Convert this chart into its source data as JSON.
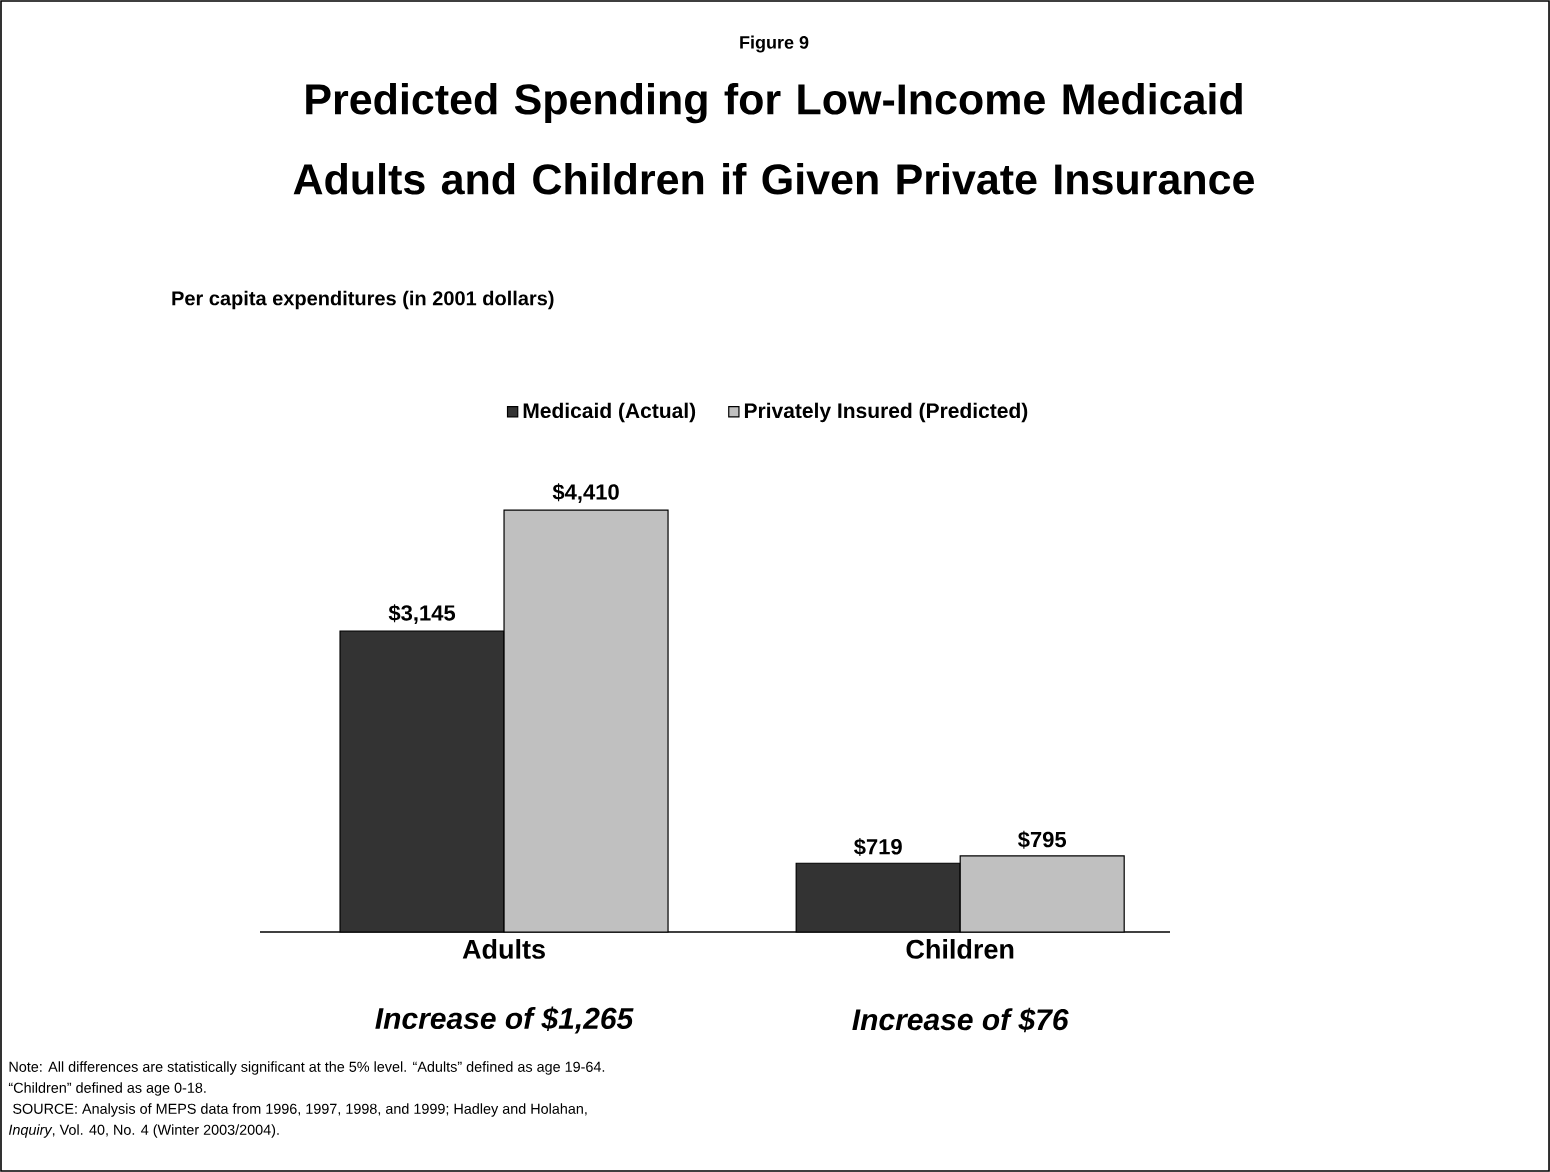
{
  "chart_data": {
    "type": "bar",
    "subtitle": "Figure 9",
    "title": "Predicted Spending for Low-Income Medicaid Adults and Children if Given Private Insurance",
    "categories": [
      "Adults",
      "Children"
    ],
    "series": [
      {
        "name": "Medicaid (Actual)",
        "color": "#333333",
        "values": [
          3145,
          719
        ],
        "value_labels": [
          "$3,145",
          "$719"
        ]
      },
      {
        "name": "Privately Insured (Predicted)",
        "color": "#c0c0c0",
        "values": [
          4410,
          795
        ],
        "value_labels": [
          "$4,410",
          "$795"
        ]
      }
    ],
    "legend": "top",
    "annotations": [
      "Per capita expenditures (in 2001 dollars)",
      "Increase of $1,265",
      "Increase of $76",
      "Note: All differences are statistically significant at the 5% level. “Adults” defined as age 19-64.",
      "“Children” defined as age 0-18.",
      " SOURCE: Analysis of MEPS data from 1996, 1997, 1998, and 1999; Hadley and Holahan,",
      "*Inquiry*, Vol. 40, No. 4 (Winter 2003/2004)."
    ]
  }
}
